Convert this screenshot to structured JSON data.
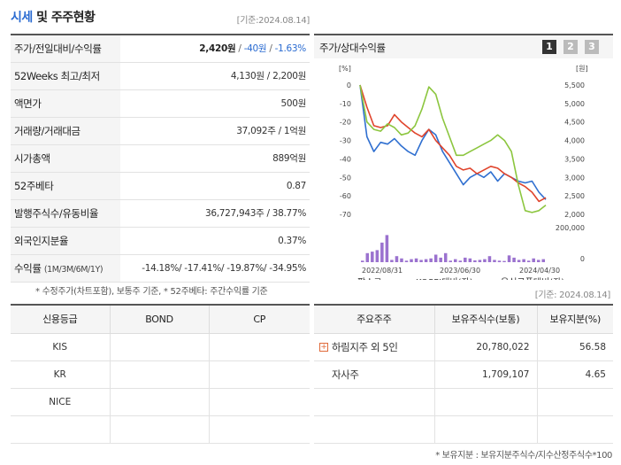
{
  "header": {
    "title_part1": "시세",
    "title_part2": " 및 주주현황",
    "date": "[기준:2024.08.14]"
  },
  "info_rows": [
    {
      "key": "주가/전일대비/수익률",
      "price": "2,420원",
      "sep1": " / ",
      "change": "-40원",
      "sep2": " / ",
      "rate": "-1.63%"
    },
    {
      "key": "52Weeks 최고/최저",
      "value": "4,130원 / 2,200원"
    },
    {
      "key": "액면가",
      "value": "500원"
    },
    {
      "key": "거래량/거래대금",
      "value": "37,092주 / 1억원"
    },
    {
      "key": "시가총액",
      "value": "889억원"
    },
    {
      "key": "52주베타",
      "value": "0.87"
    },
    {
      "key": "발행주식수/유동비율",
      "value": "36,727,943주 / 38.77%"
    },
    {
      "key": "외국인지분율",
      "value": "0.37%"
    },
    {
      "key": "수익률",
      "key_small": "(1M/3M/6M/1Y)",
      "value": "-14.18%/ -17.41%/ -19.87%/ -34.95%"
    }
  ],
  "footnote1": "* 수정주가(차트포함), 보통주 기준, * 52주베타: 주간수익률 기준",
  "chart_panel": {
    "label": "주가/상대수익률",
    "pages": [
      "1",
      "2",
      "3"
    ]
  },
  "chart_data": {
    "type": "line",
    "left_unit": "[%]",
    "right_unit": "[원]",
    "left_ticks": [
      "0",
      "-10",
      "-20",
      "-30",
      "-40",
      "-50",
      "-60",
      "-70"
    ],
    "right_ticks": [
      "5,500",
      "5,000",
      "4,500",
      "4,000",
      "3,500",
      "3,000",
      "2,500",
      "2,000"
    ],
    "volume_ticks": [
      "200,000",
      "0"
    ],
    "x_ticks": [
      "2022/08/31",
      "2023/06/30",
      "2024/04/30"
    ],
    "series": [
      {
        "name": "팜스코",
        "color": "#2f6fd0",
        "values": [
          0,
          -28,
          -36,
          -31,
          -32,
          -29,
          -33,
          -36,
          -38,
          -30,
          -24,
          -27,
          -36,
          -42,
          -48,
          -54,
          -50,
          -48,
          -50,
          -47,
          -52,
          -48,
          -50,
          -52,
          -53,
          -52,
          -58,
          -62
        ]
      },
      {
        "name": "KOSPI대비(좌)",
        "color": "#e0442c",
        "values": [
          0,
          -12,
          -22,
          -23,
          -22,
          -16,
          -20,
          -23,
          -26,
          -28,
          -24,
          -30,
          -34,
          -38,
          -44,
          -46,
          -45,
          -48,
          -46,
          -44,
          -45,
          -48,
          -50,
          -53,
          -55,
          -58,
          -63,
          -61
        ]
      },
      {
        "name": "음식료품대비(좌)",
        "color": "#8cc63f",
        "values": [
          0,
          -20,
          -24,
          -25,
          -21,
          -23,
          -27,
          -26,
          -22,
          -13,
          -1,
          -5,
          -18,
          -28,
          -38,
          -38,
          -36,
          -34,
          -32,
          -30,
          -27,
          -30,
          -36,
          -54,
          -68,
          -69,
          -68,
          -65
        ]
      }
    ],
    "volume_name": "거래량",
    "volume_color": "#9b72cf",
    "volume_values": [
      10,
      60,
      70,
      80,
      130,
      180,
      15,
      40,
      25,
      10,
      20,
      25,
      15,
      20,
      25,
      50,
      30,
      60,
      10,
      20,
      10,
      30,
      25,
      12,
      15,
      20,
      40,
      15,
      10,
      8,
      45,
      30,
      15,
      20,
      10,
      25,
      15,
      20
    ],
    "legend_swatch_names": [
      "legend-line-pamsco",
      "legend-line-kospi",
      "legend-line-food",
      "legend-volume"
    ]
  },
  "date_bottom": "[기준: 2024.08.14]",
  "credit_table": {
    "headers": [
      "신용등급",
      "BOND",
      "CP"
    ],
    "rows": [
      [
        "KIS",
        "",
        ""
      ],
      [
        "KR",
        "",
        ""
      ],
      [
        "NICE",
        "",
        ""
      ],
      [
        "",
        "",
        ""
      ]
    ]
  },
  "holders_table": {
    "headers": [
      "주요주주",
      "보유주식수(보통)",
      "보유지분(%)"
    ],
    "rows": [
      {
        "name": "하림지주 외 5인",
        "expand": "+",
        "shares": "20,780,022",
        "pct": "56.58"
      },
      {
        "name": "자사주",
        "shares": "1,709,107",
        "pct": "4.65"
      },
      {
        "name": "",
        "shares": "",
        "pct": ""
      },
      {
        "name": "",
        "shares": "",
        "pct": ""
      }
    ]
  },
  "footnote2": "* 보유지분 : 보유지분주식수/지수산정주식수*100"
}
